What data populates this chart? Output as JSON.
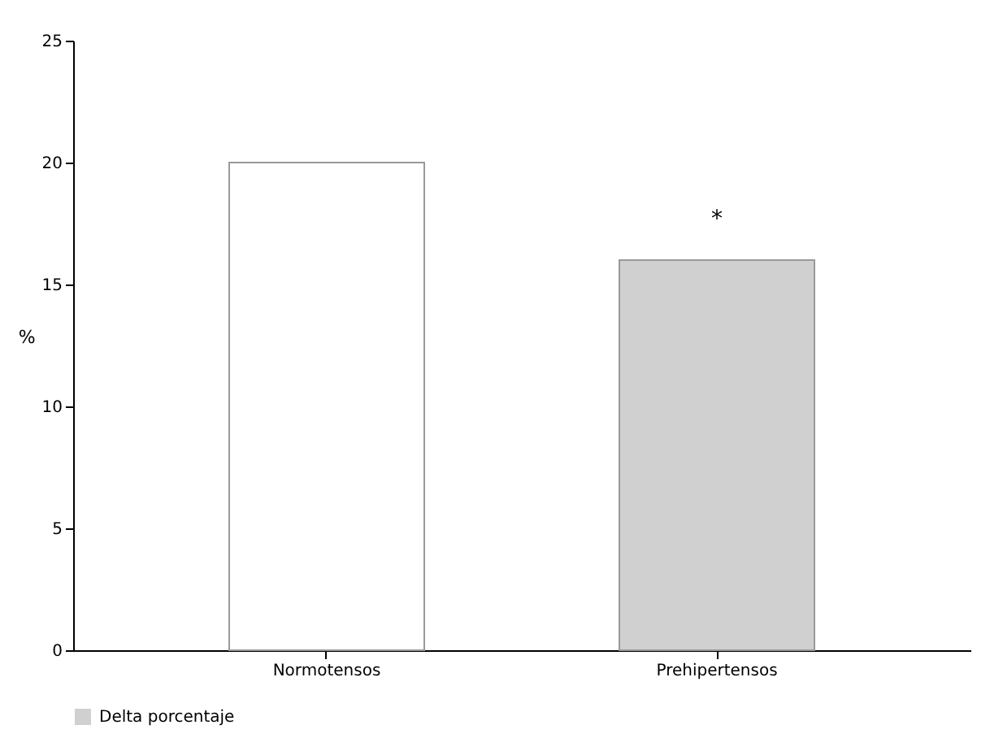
{
  "chart_data": {
    "type": "bar",
    "ylabel": "%",
    "categories": [
      "Normotensos",
      "Prehipertensos"
    ],
    "series": [
      {
        "name": "Delta porcentaje",
        "color": "#d0d0d0",
        "colors": [
          "#ffffff",
          "#d0d0d0"
        ],
        "values": [
          20,
          16
        ]
      }
    ],
    "annotations": [
      "*"
    ],
    "ylim": [
      0,
      25
    ],
    "yticks": [
      0,
      5,
      10,
      15,
      20,
      25
    ],
    "grid": false,
    "legend": "bottom"
  }
}
